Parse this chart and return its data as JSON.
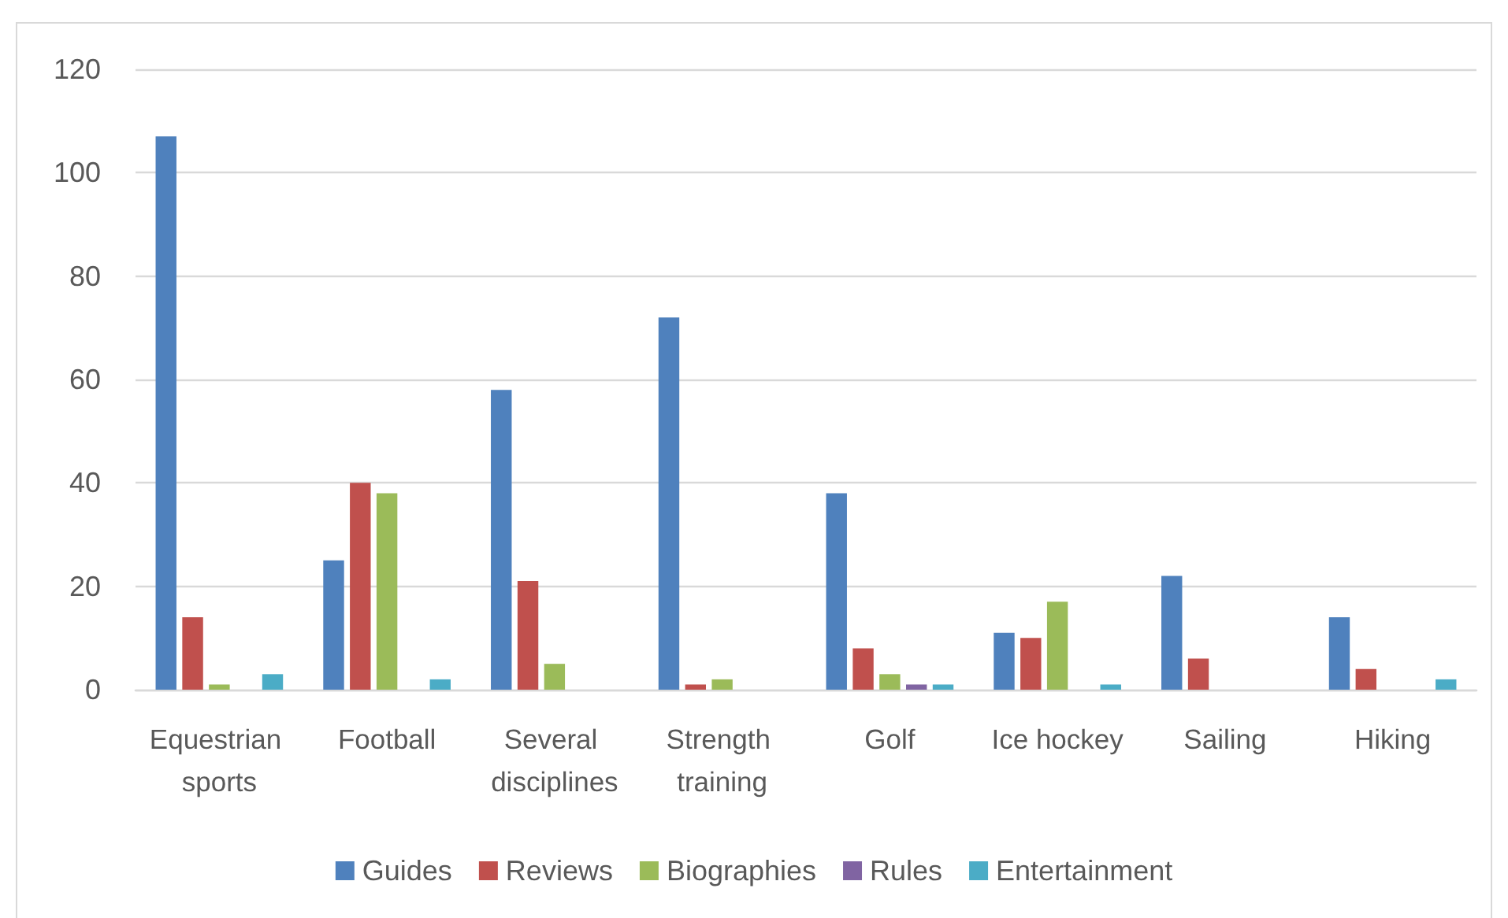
{
  "chart_data": {
    "type": "bar",
    "categories": [
      "Equestrian sports",
      "Football",
      "Several disciplines",
      "Strength training",
      "Golf",
      "Ice hockey",
      "Sailing",
      "Hiking"
    ],
    "series": [
      {
        "name": "Guides",
        "color": "#4f81bd",
        "values": [
          107,
          25,
          58,
          72,
          38,
          11,
          22,
          14
        ]
      },
      {
        "name": "Reviews",
        "color": "#c0504d",
        "values": [
          14,
          40,
          21,
          1,
          8,
          10,
          6,
          4
        ]
      },
      {
        "name": "Biographies",
        "color": "#9bbb59",
        "values": [
          1,
          38,
          5,
          2,
          3,
          17,
          0,
          0
        ]
      },
      {
        "name": "Rules",
        "color": "#8064a2",
        "values": [
          0,
          0,
          0,
          0,
          1,
          0,
          0,
          0
        ]
      },
      {
        "name": "Entertainment",
        "color": "#4bacc6",
        "values": [
          3,
          2,
          0,
          0,
          1,
          1,
          0,
          2
        ]
      }
    ],
    "ylim": [
      0,
      120
    ],
    "yticks": [
      0,
      20,
      40,
      60,
      80,
      100,
      120
    ],
    "grid": "y",
    "legend": "bottom"
  }
}
